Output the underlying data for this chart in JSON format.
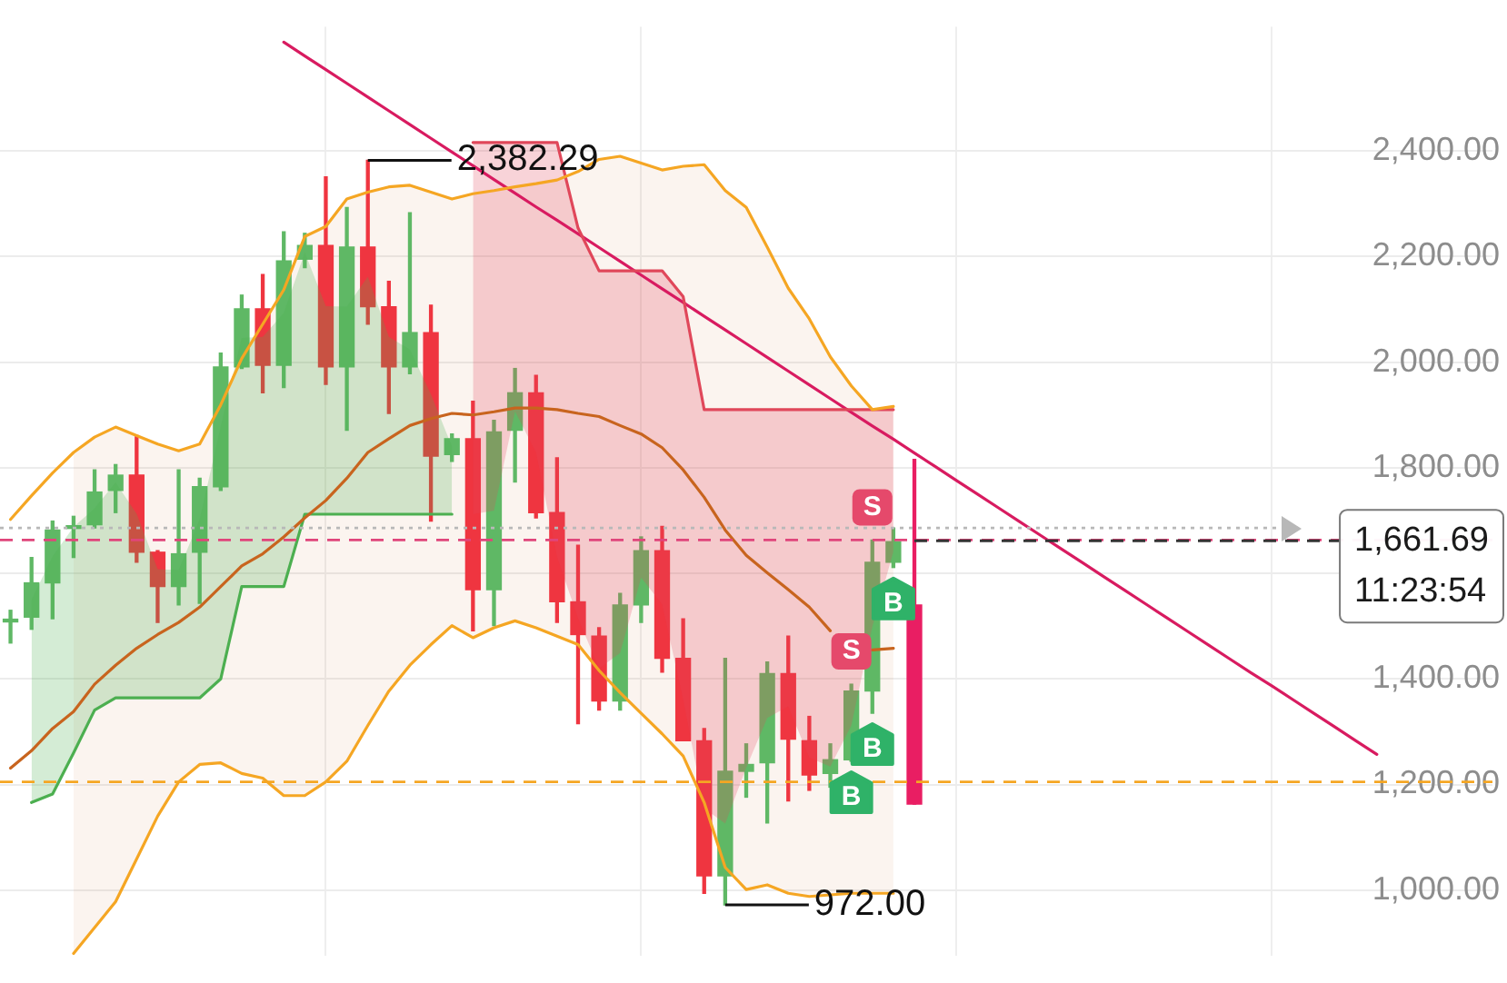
{
  "chart_data": {
    "type": "candlestick",
    "categories": [
      null,
      null,
      null,
      null,
      null,
      null,
      null,
      null,
      null,
      null,
      null,
      null,
      null,
      null,
      null,
      null,
      null,
      null,
      null,
      null,
      null,
      null,
      null,
      null,
      null,
      null,
      null,
      null,
      null,
      null,
      null,
      null,
      null,
      null,
      null,
      null,
      null,
      null,
      null,
      null,
      null,
      null,
      null,
      null,
      null,
      null,
      null,
      null,
      null,
      null,
      null,
      null,
      null,
      null,
      null,
      null,
      null,
      null,
      null,
      null,
      null,
      null,
      null,
      null,
      null,
      null,
      null,
      null,
      null,
      null,
      null
    ],
    "tick_labels": "y",
    "grid": true,
    "ylim": [
      875,
      2635
    ],
    "yticks": [
      {
        "value": 1000,
        "label": "1,000.00"
      },
      {
        "value": 1200,
        "label": "1,200.00"
      },
      {
        "value": 1400,
        "label": "1,400.00"
      },
      {
        "value": 1600,
        "label": null
      },
      {
        "value": 1800,
        "label": "1,800.00"
      },
      {
        "value": 2000,
        "label": "2,000.00"
      },
      {
        "value": 2200,
        "label": "2,200.00"
      },
      {
        "value": 2400,
        "label": "2,400.00"
      }
    ],
    "series": [
      {
        "ohlc": [
          [
            1508,
            1530,
            1468,
            1512
          ],
          [
            1517,
            1630,
            1494,
            1582
          ],
          [
            1582,
            1699,
            1514,
            1682
          ],
          [
            1685,
            1708,
            1630,
            1690
          ],
          [
            1692,
            1796,
            1686,
            1754
          ],
          [
            1757,
            1806,
            1715,
            1786
          ],
          [
            1786,
            1861,
            1621,
            1640
          ],
          [
            1640,
            1643,
            1507,
            1575
          ],
          [
            1575,
            1796,
            1540,
            1637
          ],
          [
            1640,
            1780,
            1543,
            1764
          ],
          [
            1764,
            2017,
            1757,
            1991
          ],
          [
            1991,
            2127,
            1988,
            2101
          ],
          [
            2101,
            2166,
            1942,
            1994
          ],
          [
            1994,
            2247,
            1952,
            2192
          ],
          [
            2195,
            2244,
            2179,
            2221
          ],
          [
            2221,
            2351,
            1958,
            1991
          ],
          [
            1991,
            2293,
            1871,
            2218
          ],
          [
            2218,
            2382.29,
            2072,
            2105
          ],
          [
            2105,
            2153,
            1903,
            1991
          ],
          [
            1991,
            2283,
            1978,
            2056
          ],
          [
            2056,
            2108,
            1699,
            1822
          ],
          [
            1825,
            1864,
            1812,
            1855
          ],
          [
            1855,
            1926,
            1491,
            1569
          ],
          [
            1569,
            1890,
            1501,
            1868
          ],
          [
            1871,
            1988,
            1773,
            1942
          ],
          [
            1942,
            1975,
            1705,
            1715
          ],
          [
            1715,
            1819,
            1507,
            1546
          ],
          [
            1546,
            1653,
            1315,
            1484
          ],
          [
            1481,
            1497,
            1341,
            1358
          ],
          [
            1358,
            1562,
            1341,
            1540
          ],
          [
            1540,
            1669,
            1507,
            1643
          ],
          [
            1643,
            1689,
            1413,
            1439
          ],
          [
            1439,
            1514,
            1283,
            1283
          ],
          [
            1283,
            1306,
            994,
            1027
          ],
          [
            1027,
            1439,
            972,
            1225
          ],
          [
            1225,
            1277,
            1176,
            1238
          ],
          [
            1241,
            1432,
            1127,
            1410
          ],
          [
            1410,
            1481,
            1169,
            1286
          ],
          [
            1283,
            1329,
            1189,
            1218
          ],
          [
            1221,
            1277,
            1195,
            1247
          ],
          [
            1247,
            1390,
            1244,
            1377
          ],
          [
            1377,
            1663,
            1335,
            1621
          ],
          [
            1621,
            1686,
            1611,
            1660
          ],
          [
            1540,
            1816,
            1163,
            1163
          ],
          null,
          null,
          null,
          null,
          null,
          null,
          null,
          null,
          null,
          null,
          null,
          null,
          null,
          null,
          null,
          null,
          null,
          null,
          null,
          null,
          null,
          null,
          null,
          null,
          null,
          null,
          null
        ],
        "colors": [
          "#5fb865",
          "#5fb865",
          "#5fb865",
          "#5fb865",
          "#5fb865",
          "#5fb865",
          "#ef3540",
          "#ef3540",
          "#5fb865",
          "#5fb865",
          "#5fb865",
          "#5fb865",
          "#ef3540",
          "#5fb865",
          "#5fb865",
          "#ef3540",
          "#5fb865",
          "#ef3540",
          "#ef3540",
          "#5fb865",
          "#ef3540",
          "#5fb865",
          "#ef3540",
          "#5fb865",
          "#5fb865",
          "#ef3540",
          "#ef3540",
          "#ef3540",
          "#ef3540",
          "#5fb865",
          "#5fb865",
          "#ef3540",
          "#ef3540",
          "#ef3540",
          "#5fb865",
          "#5fb865",
          "#5fb865",
          "#ef3540",
          "#ef3540",
          "#5fb865",
          "#5fb865",
          "#5fb865",
          "#5fb865",
          "#e91e63",
          null,
          null,
          null,
          null,
          null,
          null,
          null,
          null,
          null,
          null,
          null,
          null,
          null,
          null,
          null,
          null,
          null,
          null,
          null,
          null,
          null,
          null,
          null,
          null,
          null,
          null,
          null
        ]
      },
      {
        "type": "line",
        "color": "#f5a623",
        "values": [
          1702,
          1747,
          1790,
          1829,
          1858,
          1877,
          1861,
          1845,
          1832,
          1845,
          1919,
          2007,
          2072,
          2137,
          2238,
          2257,
          2309,
          2322,
          2332,
          2335,
          2322,
          2309,
          2319,
          2325,
          2332,
          2338,
          2345,
          2361,
          2384,
          2390,
          2377,
          2364,
          2371,
          2374,
          2325,
          2293,
          2218,
          2140,
          2082,
          2010,
          1955,
          1910,
          1916,
          null,
          null,
          null,
          null,
          null,
          null,
          null,
          null,
          null,
          null,
          null,
          null,
          null,
          null,
          null,
          null,
          null,
          null,
          null,
          null,
          null,
          null,
          null,
          null,
          null,
          null,
          null,
          null
        ]
      },
      {
        "type": "line",
        "color": "#f5a623",
        "values": [
          null,
          null,
          null,
          880,
          929,
          978,
          1059,
          1140,
          1205,
          1238,
          1241,
          1221,
          1212,
          1179,
          1179,
          1205,
          1244,
          1312,
          1377,
          1426,
          1465,
          1501,
          1478,
          1497,
          1510,
          1497,
          1481,
          1465,
          1416,
          1374,
          1335,
          1296,
          1254,
          1166,
          1043,
          1001,
          1010,
          994,
          988,
          991,
          994,
          994,
          994,
          null,
          null,
          null,
          null,
          null,
          null,
          null,
          null,
          null,
          null,
          null,
          null,
          null,
          null,
          null,
          null,
          null,
          null,
          null,
          null,
          null,
          null,
          null,
          null,
          null,
          null,
          null,
          null
        ]
      },
      {
        "type": "line",
        "color": "#c8641e",
        "values": [
          1231,
          1264,
          1306,
          1338,
          1390,
          1426,
          1458,
          1484,
          1507,
          1536,
          1575,
          1614,
          1637,
          1669,
          1705,
          1738,
          1780,
          1829,
          1855,
          1880,
          1893,
          1903,
          1900,
          1906,
          1913,
          1913,
          1910,
          1903,
          1897,
          1880,
          1864,
          1838,
          1796,
          1744,
          1682,
          1634,
          1601,
          1569,
          1536,
          1491,
          null,
          1455,
          1458,
          null,
          null,
          null,
          null,
          null,
          null,
          null,
          null,
          null,
          null,
          null,
          null,
          null,
          null,
          null,
          null,
          null,
          null,
          null,
          null,
          null,
          null,
          null,
          null,
          null,
          null,
          null,
          null
        ],
        "lower": [
          null,
          null,
          null,
          880,
          929,
          978,
          1059,
          1140,
          1205,
          1238,
          1241,
          1221,
          1212,
          1179,
          1179,
          1205,
          1244,
          1312,
          1377,
          1426,
          1465,
          1501,
          1478,
          1497,
          1510,
          1497,
          1481,
          1465,
          1416,
          1374,
          1335,
          1296,
          1254,
          1166,
          1043,
          1001,
          1010,
          994,
          988,
          991,
          994,
          994,
          994,
          null,
          null,
          null,
          null,
          null,
          null,
          null,
          null,
          null,
          null,
          null,
          null,
          null,
          null,
          null,
          null,
          null,
          null,
          null,
          null,
          null,
          null,
          null,
          null,
          null,
          null,
          null,
          null
        ],
        "upper": [
          null,
          null,
          null,
          1829,
          1858,
          1877,
          1861,
          1845,
          1832,
          1845,
          1919,
          2007,
          2072,
          2137,
          2238,
          2257,
          2309,
          2322,
          2332,
          2335,
          2322,
          2309,
          2319,
          2325,
          2332,
          2338,
          2345,
          2361,
          2384,
          2390,
          2377,
          2364,
          2371,
          2374,
          2325,
          2293,
          2218,
          2140,
          2082,
          2010,
          1955,
          1910,
          1916,
          null,
          null,
          null,
          null,
          null,
          null,
          null,
          null,
          null,
          null,
          null,
          null,
          null,
          null,
          null,
          null,
          null,
          null,
          null,
          null,
          null,
          null,
          null,
          null,
          null,
          null,
          null,
          null
        ]
      },
      {
        "type": "line",
        "color": "#4caf50",
        "values": [
          null,
          1166,
          1182,
          1260,
          1341,
          1364,
          1364,
          1364,
          1364,
          1364,
          1400,
          1575,
          1575,
          1575,
          1712,
          1712,
          1712,
          1712,
          1712,
          1712,
          1712,
          1712,
          null,
          null,
          null,
          null,
          null,
          null,
          null,
          null,
          null,
          null,
          null,
          null,
          null,
          null,
          null,
          null,
          null,
          null,
          null,
          null,
          null,
          null,
          null,
          null,
          null,
          null,
          null,
          null,
          null,
          null,
          null,
          null,
          null,
          null,
          null,
          null,
          null,
          null,
          null,
          null,
          null,
          null,
          null,
          null,
          null,
          null,
          null,
          null,
          null
        ],
        "lower": [
          null,
          1166,
          1182,
          1260,
          1341,
          1364,
          1364,
          1364,
          1364,
          1364,
          1400,
          1575,
          1575,
          1575,
          1712,
          1712,
          1712,
          1712,
          1712,
          1712,
          1712,
          1712,
          null,
          null,
          null,
          null,
          null,
          null,
          null,
          null,
          null,
          null,
          null,
          null,
          null,
          null,
          null,
          null,
          null,
          null,
          null,
          null,
          null,
          null,
          null,
          null,
          null,
          null,
          null,
          null,
          null,
          null,
          null,
          null,
          null,
          null,
          null,
          null,
          null,
          null,
          null,
          null,
          null,
          null,
          null,
          null,
          null,
          null,
          null,
          null,
          null
        ],
        "upper": [
          null,
          1550,
          1632,
          1688,
          1723,
          1772,
          1713,
          1608,
          1606,
          1702,
          1878,
          2046,
          2048,
          2093,
          2208,
          2106,
          2105,
          2162,
          2048,
          2024,
          1939,
          1840,
          null,
          null,
          null,
          null,
          null,
          null,
          null,
          null,
          null,
          null,
          null,
          null,
          null,
          null,
          null,
          null,
          null,
          null,
          null,
          null,
          null,
          null,
          null,
          null,
          null,
          null,
          null,
          null,
          null,
          null,
          null,
          null,
          null,
          null,
          null,
          null,
          null,
          null,
          null,
          null,
          null,
          null,
          null,
          null,
          null,
          null,
          null,
          null,
          null
        ]
      },
      {
        "type": "line",
        "color": "#e0475a",
        "values": [
          null,
          null,
          null,
          null,
          null,
          null,
          null,
          null,
          null,
          null,
          null,
          null,
          null,
          null,
          null,
          null,
          null,
          null,
          null,
          null,
          null,
          null,
          2416,
          2416,
          2416,
          2416,
          2416,
          2254,
          2173,
          2173,
          2173,
          2173,
          2124,
          1910,
          1910,
          1910,
          1910,
          1910,
          1910,
          1910,
          1910,
          1910,
          1910,
          null,
          null,
          null,
          null,
          null,
          null,
          null,
          null,
          null,
          null,
          null,
          null,
          null,
          null,
          null,
          null,
          null,
          null,
          null,
          null,
          null,
          null,
          null,
          null,
          null,
          null,
          null,
          null
        ],
        "lower": [
          null,
          null,
          null,
          null,
          null,
          null,
          null,
          null,
          null,
          null,
          null,
          null,
          null,
          null,
          null,
          null,
          null,
          null,
          null,
          null,
          null,
          null,
          1712,
          1719,
          1907,
          1829,
          1631,
          1515,
          1420,
          1449,
          1592,
          1541,
          1361,
          1155,
          1126,
          1232,
          1326,
          1348,
          1251,
          1234,
          1312,
          1499,
          1641,
          null,
          null,
          null,
          null,
          null,
          null,
          null,
          null,
          null,
          null,
          null,
          null,
          null,
          null,
          null,
          null,
          null,
          null,
          null,
          null,
          null,
          null,
          null,
          null,
          null,
          null,
          null,
          null
        ],
        "upper": [
          null,
          null,
          null,
          null,
          null,
          null,
          null,
          null,
          null,
          null,
          null,
          null,
          null,
          null,
          null,
          null,
          null,
          null,
          null,
          null,
          null,
          null,
          2416,
          2416,
          2416,
          2416,
          2416,
          2254,
          2173,
          2173,
          2173,
          2173,
          2124,
          1910,
          1910,
          1910,
          1910,
          1910,
          1910,
          1910,
          1910,
          1910,
          1910,
          null,
          null,
          null,
          null,
          null,
          null,
          null,
          null,
          null,
          null,
          null,
          null,
          null,
          null,
          null,
          null,
          null,
          null,
          null,
          null,
          null,
          null,
          null,
          null,
          null,
          null,
          null,
          null
        ]
      },
      {
        "type": "line",
        "color": "#d81b60",
        "values": [
          null,
          null,
          null,
          null,
          null,
          null,
          null,
          null,
          null,
          null,
          null,
          null,
          null,
          2606,
          2580,
          2554,
          2528,
          2502,
          2476,
          2450,
          2424,
          2398,
          2372,
          2346,
          2320,
          2294,
          2269,
          2243,
          2217,
          2191,
          2165,
          2139,
          2113,
          2087,
          2061,
          2035,
          2009,
          1983,
          1957,
          1931,
          1905,
          1879,
          1854,
          1828,
          1802,
          1776,
          1750,
          1724,
          1698,
          1672,
          1646,
          1620,
          1594,
          1568,
          1542,
          1516,
          1490,
          1464,
          1438,
          1412,
          1387,
          1361,
          1335,
          1309,
          1283,
          1257,
          null,
          null,
          null,
          null,
          null
        ]
      }
    ],
    "ref_lines": [
      {
        "axis": "y",
        "value": 1686,
        "color": "#b8b8b8",
        "line_style": "dotted"
      },
      {
        "axis": "y",
        "value": 1663,
        "color": "#e0457b",
        "line_style": "dashed"
      },
      {
        "axis": "y",
        "value": 1205,
        "color": "#f5a623",
        "line_style": "dashed"
      },
      {
        "axis": "y",
        "value": 1661.69,
        "label": "1,661.69",
        "color": "#333333",
        "line_style": "dashed"
      }
    ],
    "annotations": [
      "2,382.29",
      "972.00",
      {
        "text": "S",
        "y": 1390
      },
      {
        "text": "S",
        "y": 1663
      },
      {
        "text": "B",
        "y": 1244
      },
      {
        "text": "B",
        "y": 1335
      },
      {
        "text": "B",
        "y": 1611
      },
      "11:23:54"
    ]
  }
}
